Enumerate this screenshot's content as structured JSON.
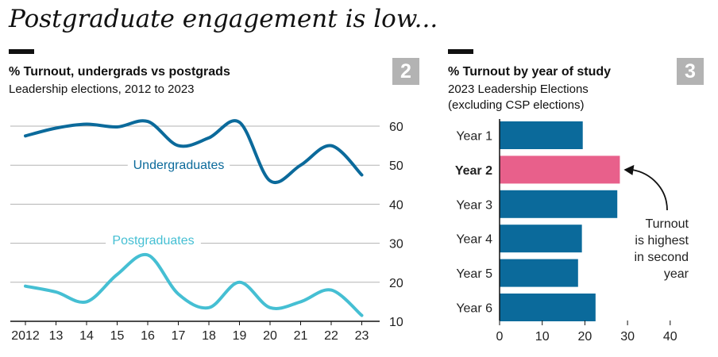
{
  "headline": "Postgraduate engagement is low...",
  "left_panel": {
    "title": "% Turnout, undergrads vs postgrads",
    "subtitle": "Leadership elections, 2012 to 2023",
    "badge": "2"
  },
  "right_panel": {
    "title": "% Turnout by year of study",
    "subtitle_line1": "2023 Leadership Elections",
    "subtitle_line2": "(excluding CSP elections)",
    "badge": "3"
  },
  "chart_data": [
    {
      "type": "line",
      "title": "% Turnout, undergrads vs postgrads",
      "subtitle": "Leadership elections, 2012 to 2023",
      "x": [
        "2012",
        "13",
        "14",
        "15",
        "16",
        "17",
        "18",
        "19",
        "20",
        "21",
        "22",
        "23"
      ],
      "series": [
        {
          "name": "Undergraduates",
          "color": "#0b6a9b",
          "values": [
            57.5,
            59.5,
            60.5,
            59.8,
            61.2,
            55,
            57,
            61,
            46,
            50,
            55,
            47.5
          ]
        },
        {
          "name": "Postgraduates",
          "color": "#45bfd3",
          "values": [
            19,
            17.5,
            15,
            22,
            27,
            17,
            13.5,
            20,
            13.5,
            15,
            18,
            11.5
          ]
        }
      ],
      "ylim": [
        10,
        60
      ],
      "yticks": [
        10,
        20,
        30,
        40,
        50,
        60
      ],
      "xlabel": "",
      "ylabel": "",
      "grid": true
    },
    {
      "type": "bar",
      "orientation": "horizontal",
      "title": "% Turnout by year of study",
      "subtitle": "2023 Leadership Elections (excluding CSP elections)",
      "categories": [
        "Year 1",
        "Year 2",
        "Year 3",
        "Year 4",
        "Year 5",
        "Year 6"
      ],
      "values": [
        19.5,
        28.2,
        27.6,
        19.3,
        18.4,
        22.5
      ],
      "highlight": "Year 2",
      "colors": {
        "default": "#0b6a9b",
        "highlight": "#e8608b"
      },
      "xlim": [
        0,
        40
      ],
      "xticks": [
        0,
        10,
        20,
        30,
        40
      ],
      "annotation": {
        "lines": [
          "Turnout",
          "is highest",
          "in second",
          "year"
        ],
        "target": "Year 2"
      }
    }
  ]
}
